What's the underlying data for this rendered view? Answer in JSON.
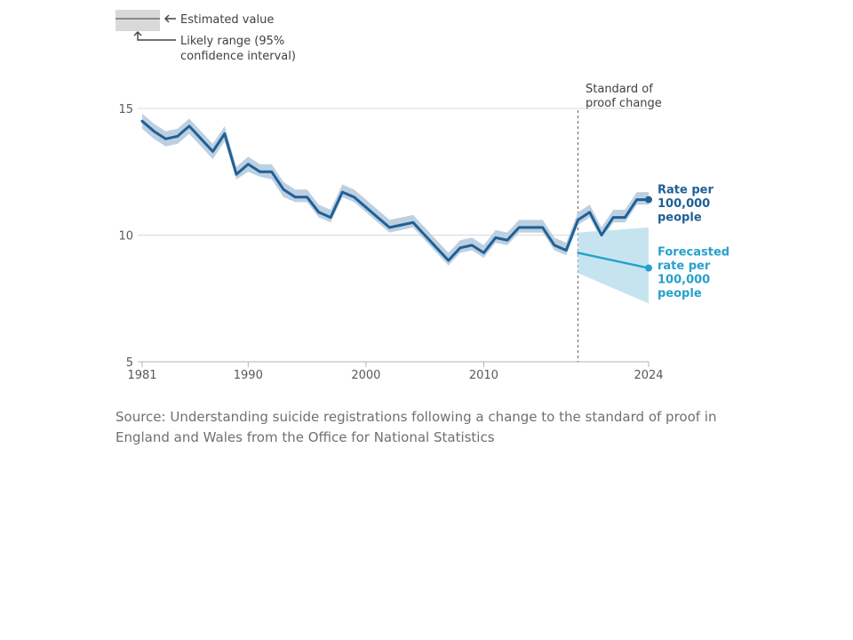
{
  "legend": {
    "estimate": "Estimated value",
    "range": [
      "Likely range (95%",
      "confidence interval)"
    ]
  },
  "chart_data": {
    "type": "line",
    "x_ticks": [
      1981,
      1990,
      2000,
      2010,
      2024
    ],
    "y_ticks": [
      5,
      10,
      15
    ],
    "xlim": [
      1981,
      2024
    ],
    "ylim": [
      5,
      15
    ],
    "grid": "horizontal",
    "series": [
      {
        "name": "Rate per 100,000 people",
        "color": "#206095",
        "band_color": "#bdd0e2",
        "x": [
          1981,
          1982,
          1983,
          1984,
          1985,
          1986,
          1987,
          1988,
          1989,
          1990,
          1991,
          1992,
          1993,
          1994,
          1995,
          1996,
          1997,
          1998,
          1999,
          2000,
          2001,
          2002,
          2003,
          2004,
          2005,
          2006,
          2007,
          2008,
          2009,
          2010,
          2011,
          2012,
          2013,
          2014,
          2015,
          2016,
          2017,
          2018,
          2019,
          2020,
          2021,
          2022,
          2023,
          2024
        ],
        "values": [
          14.5,
          14.1,
          13.8,
          13.9,
          14.3,
          13.8,
          13.3,
          14.0,
          12.4,
          12.8,
          12.5,
          12.5,
          11.8,
          11.5,
          11.5,
          10.9,
          10.7,
          11.7,
          11.5,
          11.1,
          10.7,
          10.3,
          10.4,
          10.5,
          10.0,
          9.5,
          9.0,
          9.5,
          9.6,
          9.3,
          9.9,
          9.8,
          10.3,
          10.3,
          10.3,
          9.6,
          9.4,
          10.6,
          10.9,
          10.0,
          10.7,
          10.7,
          11.4,
          11.4
        ],
        "lower": [
          14.2,
          13.8,
          13.5,
          13.6,
          14.0,
          13.5,
          13.0,
          13.7,
          12.2,
          12.5,
          12.3,
          12.2,
          11.5,
          11.3,
          11.3,
          10.7,
          10.5,
          11.5,
          11.3,
          10.9,
          10.5,
          10.1,
          10.2,
          10.3,
          9.8,
          9.3,
          8.8,
          9.3,
          9.4,
          9.1,
          9.7,
          9.6,
          10.1,
          10.1,
          10.1,
          9.4,
          9.2,
          10.4,
          10.7,
          9.8,
          10.5,
          10.5,
          11.2,
          11.2
        ],
        "upper": [
          14.8,
          14.4,
          14.1,
          14.2,
          14.6,
          14.1,
          13.6,
          14.3,
          12.7,
          13.1,
          12.8,
          12.8,
          12.1,
          11.8,
          11.8,
          11.2,
          11.0,
          12.0,
          11.8,
          11.4,
          11.0,
          10.6,
          10.7,
          10.8,
          10.3,
          9.8,
          9.3,
          9.8,
          9.9,
          9.6,
          10.2,
          10.1,
          10.6,
          10.6,
          10.6,
          9.9,
          9.7,
          10.9,
          11.2,
          10.3,
          11.0,
          11.0,
          11.7,
          11.7
        ],
        "label": [
          "Rate per",
          "100,000",
          "people"
        ]
      },
      {
        "name": "Forecasted rate per 100,000 people",
        "color": "#27a0cc",
        "band_color": "#c6e4f0",
        "x": [
          2018,
          2024
        ],
        "values": [
          9.3,
          8.7
        ],
        "lower": [
          8.5,
          7.3
        ],
        "upper": [
          10.1,
          10.3
        ],
        "label": [
          "Forecasted",
          "rate per",
          "100,000",
          "people"
        ]
      }
    ],
    "annotation": {
      "x": 2018,
      "text": [
        "Standard of",
        "proof change"
      ]
    }
  },
  "source": "Source: Understanding suicide registrations following a change to the standard of proof in England and Wales from the Office for National Statistics"
}
